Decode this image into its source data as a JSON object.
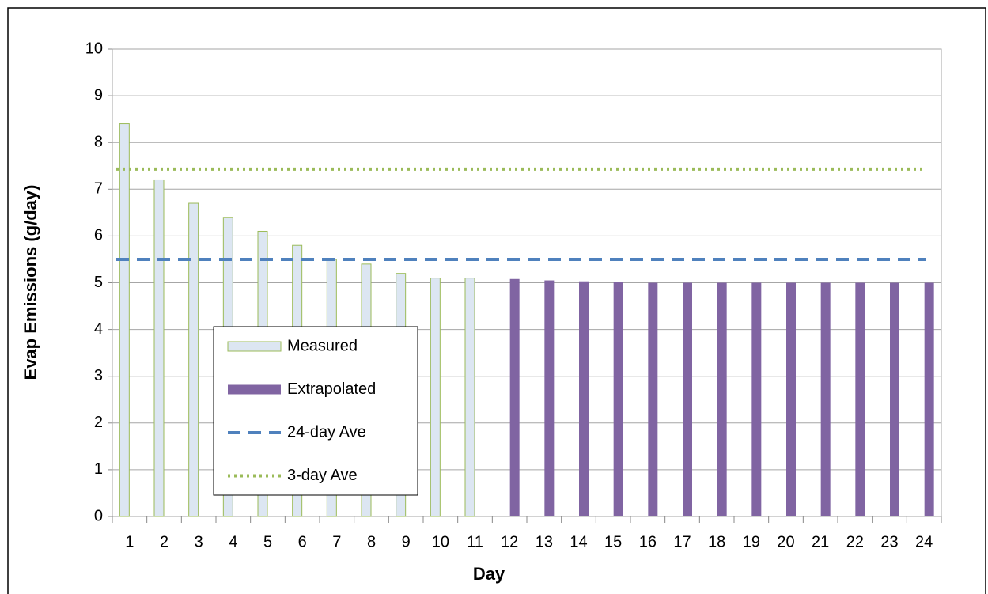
{
  "chart_data": {
    "type": "bar",
    "x_label": "Day",
    "y_label": "Evap Emissions (g/day)",
    "categories": [
      "1",
      "2",
      "3",
      "4",
      "5",
      "6",
      "7",
      "8",
      "9",
      "10",
      "11",
      "12",
      "13",
      "14",
      "15",
      "16",
      "17",
      "18",
      "19",
      "20",
      "21",
      "22",
      "23",
      "24"
    ],
    "series": [
      {
        "name": "Measured",
        "color": "#dce6f2",
        "stroke": "#9bbb59",
        "values": [
          8.4,
          7.2,
          6.7,
          6.4,
          6.1,
          5.8,
          5.5,
          5.4,
          5.2,
          5.1,
          5.1,
          null,
          null,
          null,
          null,
          null,
          null,
          null,
          null,
          null,
          null,
          null,
          null,
          null
        ]
      },
      {
        "name": "Extrapolated",
        "color": "#8064a2",
        "values": [
          null,
          null,
          null,
          null,
          null,
          null,
          null,
          null,
          null,
          null,
          null,
          5.08,
          5.05,
          5.03,
          5.02,
          5.0,
          5.0,
          5.0,
          5.0,
          5.0,
          5.0,
          5.0,
          5.0,
          5.0
        ]
      }
    ],
    "lines": [
      {
        "name": "24-day Ave",
        "color": "#4f81bd",
        "style": "dashed",
        "value": 5.5
      },
      {
        "name": "3-day Ave",
        "color": "#9bbb59",
        "style": "dotted",
        "value": 7.43
      }
    ],
    "ylim": [
      0,
      10
    ],
    "yticks": [
      0,
      1,
      2,
      3,
      4,
      5,
      6,
      7,
      8,
      9,
      10
    ],
    "grid": true,
    "legend": "lower-left"
  }
}
